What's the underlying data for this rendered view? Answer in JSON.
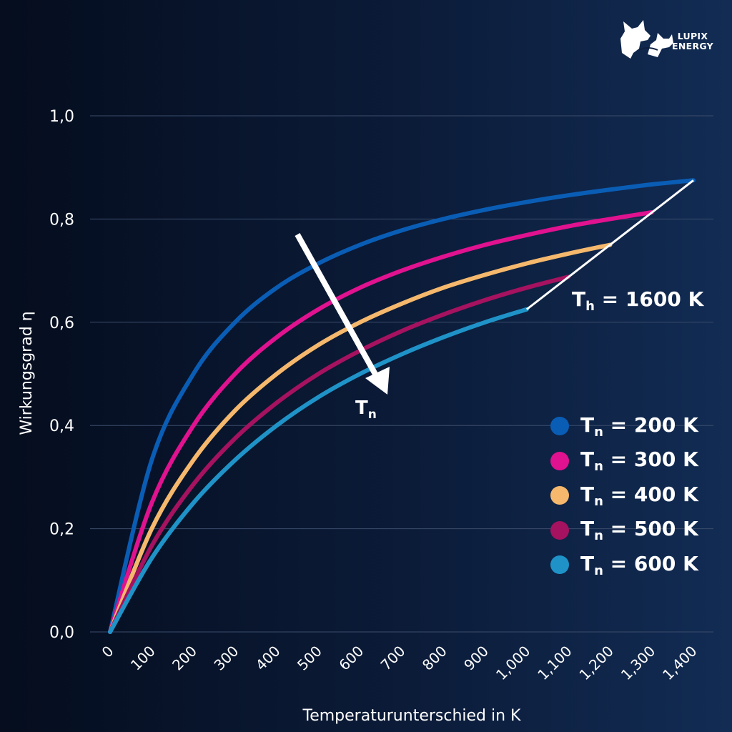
{
  "brand": {
    "line1": "LUPIX",
    "line2": "ENERGY"
  },
  "annotations": {
    "th_main": "T",
    "th_sub": "h",
    "th_rest": " = 1600 K",
    "tn_main": "T",
    "tn_sub": "n"
  },
  "colors": {
    "grid": "#3b4c6b",
    "axis_text": "#ffffff",
    "annotation_line": "#ffffff"
  },
  "chart_data": {
    "type": "line",
    "xlabel": "Temperaturunterschied in K",
    "ylabel": "Wirkungsgrad η",
    "xlim": [
      0,
      1400
    ],
    "ylim": [
      0,
      1.0
    ],
    "x_ticks": [
      0,
      100,
      200,
      300,
      400,
      500,
      600,
      700,
      800,
      900,
      1000,
      1100,
      1200,
      1300,
      1400
    ],
    "x_tick_labels": [
      "0",
      "100",
      "200",
      "300",
      "400",
      "500",
      "600",
      "700",
      "800",
      "900",
      "1,000",
      "1,100",
      "1,200",
      "1,300",
      "1,400"
    ],
    "y_ticks": [
      0.0,
      0.2,
      0.4,
      0.6,
      0.8,
      1.0
    ],
    "y_tick_labels": [
      "0,0",
      "0,2",
      "0,4",
      "0,6",
      "0,8",
      "1,0"
    ],
    "grid": "horizontal",
    "legend_position": "right",
    "series": [
      {
        "name": "200 K",
        "label_main": "T",
        "label_sub": "n",
        "label_rest": " = 200 K",
        "color": "#0a5db5",
        "x": [
          0,
          100,
          200,
          300,
          400,
          500,
          600,
          700,
          800,
          900,
          1000,
          1100,
          1200,
          1300,
          1400
        ],
        "values": [
          0.0,
          0.333,
          0.5,
          0.6,
          0.667,
          0.714,
          0.75,
          0.778,
          0.8,
          0.818,
          0.833,
          0.846,
          0.857,
          0.867,
          0.875
        ]
      },
      {
        "name": "300 K",
        "label_main": "T",
        "label_sub": "n",
        "label_rest": " = 300 K",
        "color": "#e0128f",
        "x": [
          0,
          100,
          200,
          300,
          400,
          500,
          600,
          700,
          800,
          900,
          1000,
          1100,
          1200,
          1300
        ],
        "values": [
          0.0,
          0.25,
          0.4,
          0.5,
          0.571,
          0.625,
          0.667,
          0.7,
          0.727,
          0.75,
          0.769,
          0.786,
          0.8,
          0.813
        ]
      },
      {
        "name": "400 K",
        "label_main": "T",
        "label_sub": "n",
        "label_rest": " = 400 K",
        "color": "#f5b86c",
        "x": [
          0,
          100,
          200,
          300,
          400,
          500,
          600,
          700,
          800,
          900,
          1000,
          1100,
          1200
        ],
        "values": [
          0.0,
          0.2,
          0.333,
          0.429,
          0.5,
          0.556,
          0.6,
          0.636,
          0.667,
          0.692,
          0.714,
          0.733,
          0.75
        ]
      },
      {
        "name": "500 K",
        "label_main": "T",
        "label_sub": "n",
        "label_rest": " = 500 K",
        "color": "#a5125f",
        "x": [
          0,
          100,
          200,
          300,
          400,
          500,
          600,
          700,
          800,
          900,
          1000,
          1100
        ],
        "values": [
          0.0,
          0.167,
          0.286,
          0.375,
          0.444,
          0.5,
          0.545,
          0.583,
          0.615,
          0.643,
          0.667,
          0.688
        ]
      },
      {
        "name": "600 K",
        "label_main": "T",
        "label_sub": "n",
        "label_rest": " = 600 K",
        "color": "#1f93c8",
        "x": [
          0,
          100,
          200,
          300,
          400,
          500,
          600,
          700,
          800,
          900,
          1000
        ],
        "values": [
          0.0,
          0.143,
          0.25,
          0.333,
          0.4,
          0.455,
          0.5,
          0.538,
          0.571,
          0.6,
          0.625
        ]
      }
    ]
  }
}
